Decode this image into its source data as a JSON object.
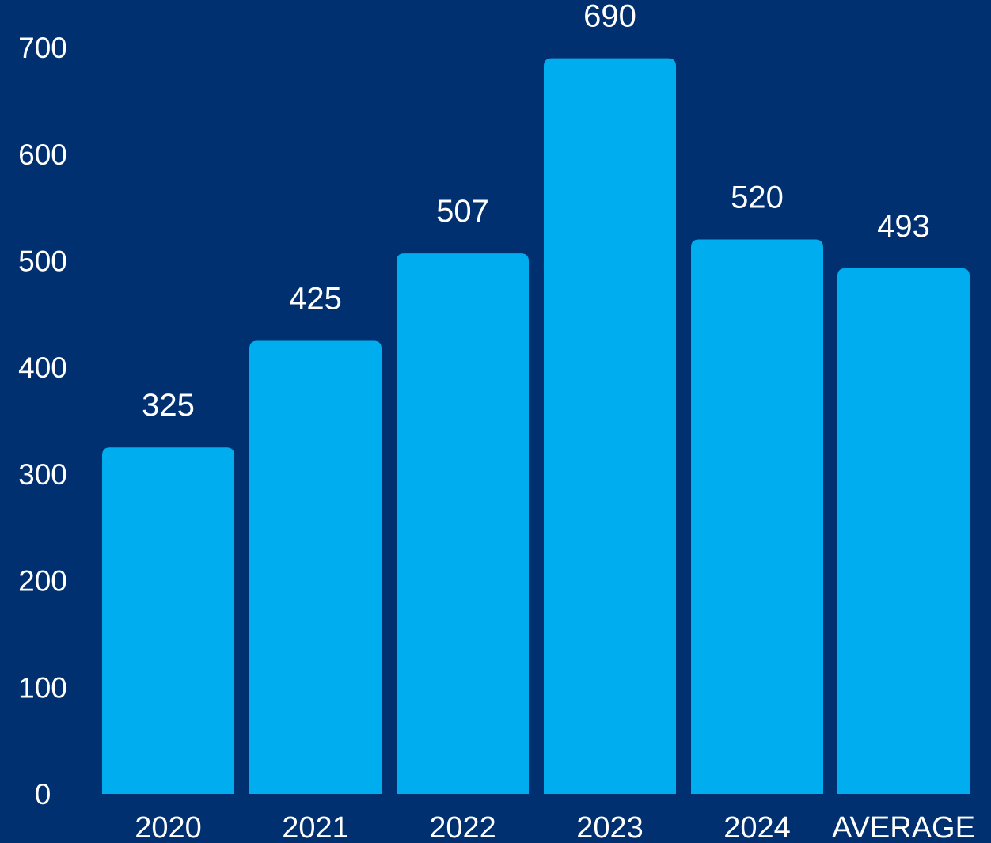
{
  "colors": {
    "background": "#003070",
    "bar": "#00AEEF",
    "text": "#FFFFFF"
  },
  "chart_data": {
    "type": "bar",
    "title": "",
    "xlabel": "",
    "ylabel": "",
    "categories": [
      "2020",
      "2021",
      "2022",
      "2023",
      "2024",
      "AVERAGE"
    ],
    "values": [
      325,
      425,
      507,
      690,
      520,
      493
    ],
    "data_labels": [
      "325",
      "425",
      "507",
      "690",
      "520",
      "493"
    ],
    "yticks": [
      "0",
      "100",
      "200",
      "300",
      "400",
      "500",
      "600",
      "700"
    ],
    "ylim": [
      0,
      700
    ],
    "grid": false,
    "legend": false
  }
}
